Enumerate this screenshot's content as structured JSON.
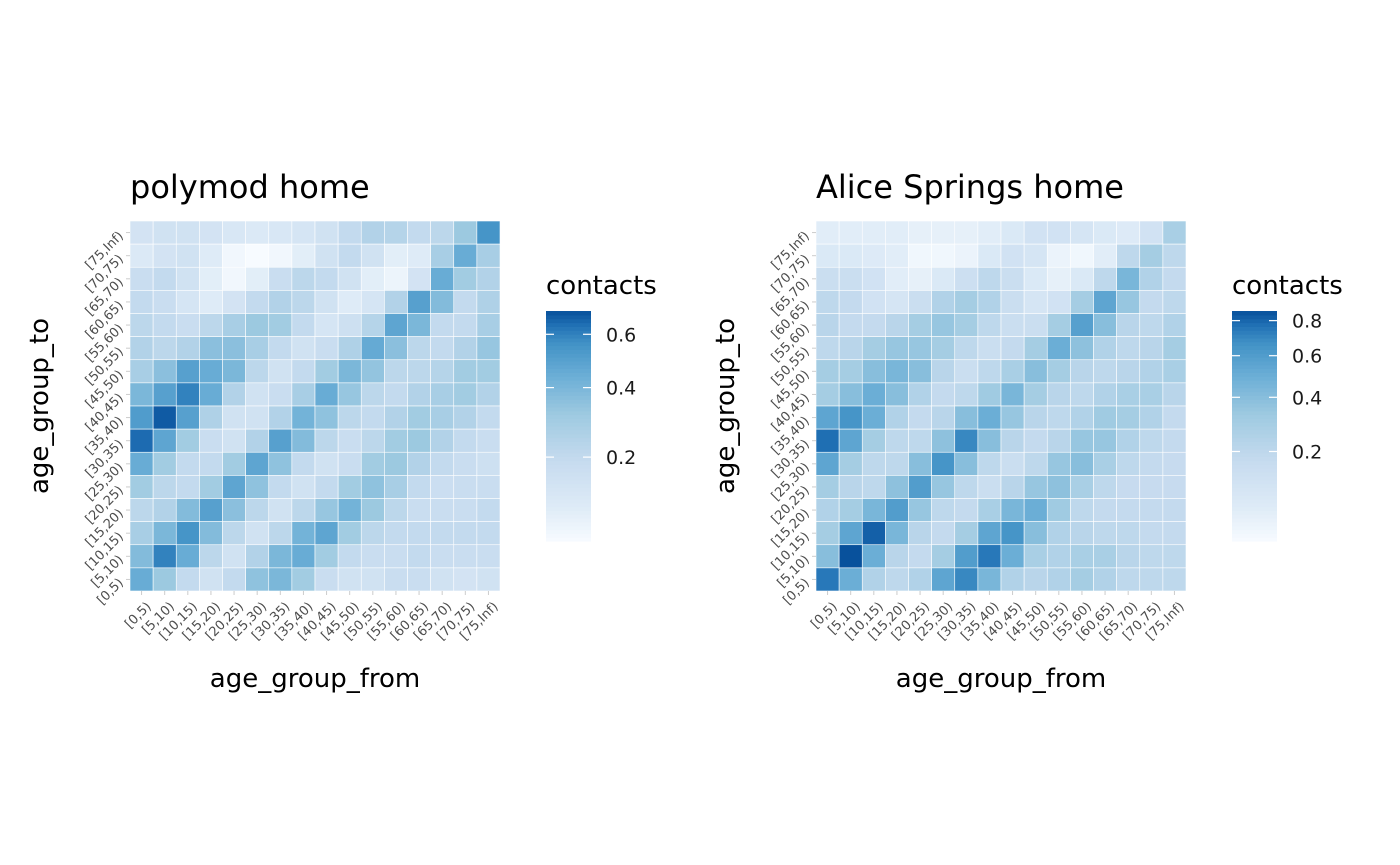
{
  "chart_data": [
    {
      "type": "heatmap",
      "title": "polymod home",
      "xlabel": "age_group_from",
      "ylabel": "age_group_to",
      "categories": [
        "[0,5)",
        "[5,10)",
        "[10,15)",
        "[15,20)",
        "[20,25)",
        "[25,30)",
        "[30,35)",
        "[35,40)",
        "[40,45)",
        "[45,50)",
        "[50,55)",
        "[55,60)",
        "[60,65)",
        "[65,70)",
        "[70,75)",
        "[75,Inf)"
      ],
      "legend": {
        "title": "contacts",
        "ticks": [
          0.2,
          0.4,
          0.6
        ],
        "range": [
          0.05,
          0.7
        ],
        "scale": "sqrt",
        "low_color": "#f7fbff",
        "high_color": "#08519c"
      },
      "rows_top_to_bottom": [
        [
          0.14,
          0.15,
          0.15,
          0.14,
          0.12,
          0.11,
          0.12,
          0.13,
          0.15,
          0.2,
          0.25,
          0.24,
          0.2,
          0.22,
          0.32,
          0.55
        ],
        [
          0.11,
          0.14,
          0.15,
          0.1,
          0.06,
          0.05,
          0.06,
          0.09,
          0.15,
          0.2,
          0.15,
          0.09,
          0.1,
          0.28,
          0.45,
          0.28
        ],
        [
          0.18,
          0.2,
          0.15,
          0.09,
          0.06,
          0.09,
          0.18,
          0.22,
          0.2,
          0.15,
          0.09,
          0.07,
          0.14,
          0.45,
          0.3,
          0.25
        ],
        [
          0.2,
          0.18,
          0.13,
          0.1,
          0.14,
          0.2,
          0.25,
          0.22,
          0.15,
          0.1,
          0.13,
          0.25,
          0.5,
          0.38,
          0.2,
          0.26
        ],
        [
          0.22,
          0.2,
          0.18,
          0.22,
          0.28,
          0.32,
          0.3,
          0.2,
          0.13,
          0.16,
          0.24,
          0.48,
          0.4,
          0.2,
          0.2,
          0.28
        ],
        [
          0.25,
          0.22,
          0.25,
          0.36,
          0.36,
          0.28,
          0.2,
          0.15,
          0.18,
          0.26,
          0.46,
          0.36,
          0.22,
          0.2,
          0.25,
          0.33
        ],
        [
          0.28,
          0.36,
          0.5,
          0.45,
          0.4,
          0.22,
          0.15,
          0.2,
          0.3,
          0.4,
          0.34,
          0.22,
          0.22,
          0.24,
          0.3,
          0.3
        ],
        [
          0.4,
          0.5,
          0.6,
          0.45,
          0.25,
          0.15,
          0.18,
          0.28,
          0.45,
          0.33,
          0.22,
          0.2,
          0.25,
          0.28,
          0.3,
          0.25
        ],
        [
          0.52,
          0.68,
          0.5,
          0.26,
          0.15,
          0.15,
          0.25,
          0.42,
          0.35,
          0.22,
          0.2,
          0.25,
          0.3,
          0.28,
          0.25,
          0.2
        ],
        [
          0.65,
          0.48,
          0.3,
          0.18,
          0.15,
          0.25,
          0.5,
          0.38,
          0.22,
          0.18,
          0.22,
          0.3,
          0.32,
          0.25,
          0.2,
          0.18
        ],
        [
          0.45,
          0.3,
          0.2,
          0.2,
          0.3,
          0.48,
          0.35,
          0.2,
          0.15,
          0.18,
          0.3,
          0.32,
          0.25,
          0.2,
          0.18,
          0.16
        ],
        [
          0.3,
          0.22,
          0.2,
          0.3,
          0.48,
          0.35,
          0.2,
          0.15,
          0.2,
          0.3,
          0.35,
          0.28,
          0.2,
          0.17,
          0.18,
          0.18
        ],
        [
          0.22,
          0.25,
          0.38,
          0.5,
          0.36,
          0.22,
          0.15,
          0.22,
          0.33,
          0.42,
          0.32,
          0.22,
          0.18,
          0.18,
          0.18,
          0.2
        ],
        [
          0.28,
          0.4,
          0.55,
          0.38,
          0.22,
          0.15,
          0.22,
          0.42,
          0.48,
          0.3,
          0.22,
          0.2,
          0.2,
          0.2,
          0.2,
          0.2
        ],
        [
          0.38,
          0.6,
          0.45,
          0.22,
          0.15,
          0.25,
          0.4,
          0.45,
          0.3,
          0.2,
          0.18,
          0.18,
          0.2,
          0.18,
          0.18,
          0.18
        ],
        [
          0.45,
          0.32,
          0.2,
          0.15,
          0.2,
          0.35,
          0.4,
          0.3,
          0.18,
          0.15,
          0.15,
          0.18,
          0.18,
          0.15,
          0.14,
          0.15
        ]
      ]
    },
    {
      "type": "heatmap",
      "title": "Alice Springs home",
      "xlabel": "age_group_from",
      "ylabel": "age_group_to",
      "categories": [
        "[0,5)",
        "[5,10)",
        "[10,15)",
        "[15,20)",
        "[20,25)",
        "[25,30)",
        "[30,35)",
        "[35,40)",
        "[40,45)",
        "[45,50)",
        "[50,55)",
        "[55,60)",
        "[60,65)",
        "[65,70)",
        "[70,75)",
        "[75,Inf)"
      ],
      "legend": {
        "title": "contacts",
        "ticks": [
          0.2,
          0.4,
          0.6,
          0.8
        ],
        "range": [
          0.02,
          0.86
        ],
        "scale": "sqrt",
        "low_color": "#f7fbff",
        "high_color": "#08519c"
      },
      "rows_top_to_bottom": [
        [
          0.06,
          0.06,
          0.06,
          0.06,
          0.05,
          0.05,
          0.05,
          0.06,
          0.08,
          0.12,
          0.12,
          0.1,
          0.08,
          0.07,
          0.12,
          0.28
        ],
        [
          0.08,
          0.08,
          0.07,
          0.06,
          0.03,
          0.03,
          0.04,
          0.08,
          0.12,
          0.1,
          0.04,
          0.03,
          0.06,
          0.2,
          0.3,
          0.2
        ],
        [
          0.15,
          0.15,
          0.12,
          0.06,
          0.05,
          0.08,
          0.14,
          0.2,
          0.15,
          0.08,
          0.05,
          0.08,
          0.2,
          0.45,
          0.25,
          0.18
        ],
        [
          0.2,
          0.18,
          0.12,
          0.1,
          0.15,
          0.25,
          0.3,
          0.25,
          0.15,
          0.1,
          0.12,
          0.3,
          0.55,
          0.35,
          0.18,
          0.2
        ],
        [
          0.22,
          0.18,
          0.18,
          0.22,
          0.3,
          0.35,
          0.3,
          0.2,
          0.15,
          0.15,
          0.3,
          0.58,
          0.4,
          0.22,
          0.2,
          0.25
        ],
        [
          0.2,
          0.22,
          0.3,
          0.35,
          0.35,
          0.3,
          0.2,
          0.15,
          0.18,
          0.3,
          0.5,
          0.38,
          0.25,
          0.2,
          0.22,
          0.3
        ],
        [
          0.3,
          0.3,
          0.4,
          0.45,
          0.4,
          0.22,
          0.15,
          0.2,
          0.28,
          0.4,
          0.3,
          0.22,
          0.2,
          0.22,
          0.25,
          0.28
        ],
        [
          0.3,
          0.4,
          0.5,
          0.4,
          0.25,
          0.18,
          0.2,
          0.32,
          0.45,
          0.3,
          0.22,
          0.2,
          0.25,
          0.28,
          0.28,
          0.22
        ],
        [
          0.55,
          0.65,
          0.5,
          0.25,
          0.18,
          0.22,
          0.4,
          0.5,
          0.35,
          0.22,
          0.2,
          0.25,
          0.32,
          0.3,
          0.25,
          0.18
        ],
        [
          0.78,
          0.55,
          0.3,
          0.2,
          0.2,
          0.38,
          0.7,
          0.4,
          0.22,
          0.18,
          0.22,
          0.35,
          0.35,
          0.25,
          0.2,
          0.18
        ],
        [
          0.55,
          0.3,
          0.2,
          0.2,
          0.4,
          0.65,
          0.4,
          0.2,
          0.15,
          0.2,
          0.35,
          0.4,
          0.28,
          0.2,
          0.18,
          0.17
        ],
        [
          0.3,
          0.22,
          0.2,
          0.38,
          0.6,
          0.35,
          0.2,
          0.15,
          0.22,
          0.35,
          0.38,
          0.28,
          0.2,
          0.17,
          0.17,
          0.17
        ],
        [
          0.25,
          0.3,
          0.45,
          0.6,
          0.35,
          0.2,
          0.18,
          0.28,
          0.45,
          0.5,
          0.32,
          0.2,
          0.18,
          0.18,
          0.18,
          0.18
        ],
        [
          0.3,
          0.55,
          0.82,
          0.45,
          0.22,
          0.18,
          0.3,
          0.55,
          0.65,
          0.4,
          0.25,
          0.22,
          0.2,
          0.2,
          0.18,
          0.18
        ],
        [
          0.4,
          0.86,
          0.5,
          0.22,
          0.18,
          0.3,
          0.6,
          0.75,
          0.5,
          0.28,
          0.25,
          0.28,
          0.28,
          0.22,
          0.2,
          0.2
        ],
        [
          0.75,
          0.5,
          0.25,
          0.2,
          0.25,
          0.55,
          0.7,
          0.45,
          0.25,
          0.22,
          0.25,
          0.3,
          0.25,
          0.2,
          0.2,
          0.2
        ]
      ]
    }
  ]
}
